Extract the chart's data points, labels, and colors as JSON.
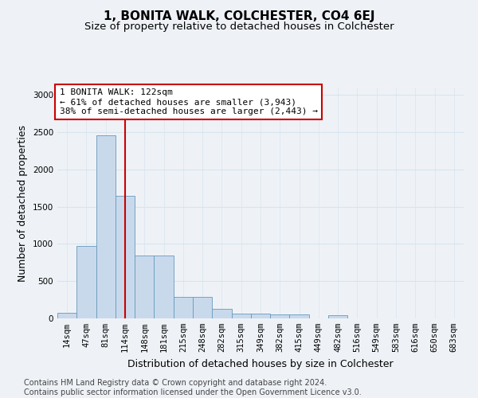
{
  "title": "1, BONITA WALK, COLCHESTER, CO4 6EJ",
  "subtitle": "Size of property relative to detached houses in Colchester",
  "xlabel": "Distribution of detached houses by size in Colchester",
  "ylabel": "Number of detached properties",
  "categories": [
    "14sqm",
    "47sqm",
    "81sqm",
    "114sqm",
    "148sqm",
    "181sqm",
    "215sqm",
    "248sqm",
    "282sqm",
    "315sqm",
    "349sqm",
    "382sqm",
    "415sqm",
    "449sqm",
    "482sqm",
    "516sqm",
    "549sqm",
    "583sqm",
    "616sqm",
    "650sqm",
    "683sqm"
  ],
  "values": [
    75,
    975,
    2460,
    1650,
    840,
    840,
    290,
    290,
    130,
    60,
    60,
    55,
    50,
    0,
    45,
    0,
    0,
    0,
    0,
    0,
    0
  ],
  "bar_color": "#c9d9ec",
  "bar_edge_color": "#6699bb",
  "vline_x": 3.0,
  "vline_color": "#cc0000",
  "annotation_text": "1 BONITA WALK: 122sqm\n← 61% of detached houses are smaller (3,943)\n38% of semi-detached houses are larger (2,443) →",
  "annotation_box_color": "white",
  "annotation_box_edge_color": "#cc0000",
  "ylim": [
    0,
    3100
  ],
  "yticks": [
    0,
    500,
    1000,
    1500,
    2000,
    2500,
    3000
  ],
  "footer_line1": "Contains HM Land Registry data © Crown copyright and database right 2024.",
  "footer_line2": "Contains public sector information licensed under the Open Government Licence v3.0.",
  "background_color": "#eef2f7",
  "grid_color": "#d8e4ee",
  "title_fontsize": 11,
  "subtitle_fontsize": 9.5,
  "axis_label_fontsize": 9,
  "tick_fontsize": 7.5,
  "footer_fontsize": 7
}
